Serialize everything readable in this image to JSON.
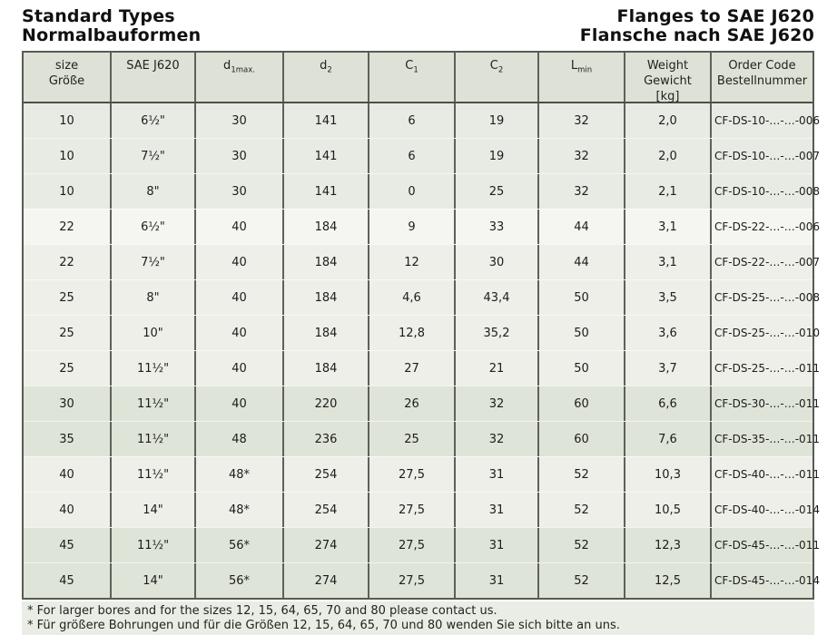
{
  "header": {
    "title_en": "Standard Types",
    "title_de": "Normalbauformen",
    "right_title_en": "Flanges to SAE J620",
    "right_title_de": "Flansche nach SAE J620"
  },
  "table": {
    "columns": [
      {
        "id": "size",
        "lines": [
          "size",
          "Größe"
        ]
      },
      {
        "id": "sae-j620",
        "lines": [
          "SAE J620"
        ]
      },
      {
        "id": "d1max",
        "base": "d",
        "sub": "1max."
      },
      {
        "id": "d2",
        "base": "d",
        "sub": "2"
      },
      {
        "id": "c1",
        "base": "C",
        "sub": "1"
      },
      {
        "id": "c2",
        "base": "C",
        "sub": "2"
      },
      {
        "id": "lmin",
        "base": "L",
        "sub": "min"
      },
      {
        "id": "weight",
        "lines": [
          "Weight",
          "Gewicht",
          "[kg]"
        ]
      },
      {
        "id": "order-code",
        "lines": [
          "Order Code",
          "Bestellnummer"
        ]
      }
    ],
    "rows": [
      {
        "band": "m",
        "cells": [
          "10",
          "6½\"",
          "30",
          "141",
          "6",
          "19",
          "32",
          "2,0",
          "CF-DS-10-…-…-006"
        ]
      },
      {
        "band": "m",
        "cells": [
          "10",
          "7½\"",
          "30",
          "141",
          "6",
          "19",
          "32",
          "2,0",
          "CF-DS-10-…-…-007"
        ]
      },
      {
        "band": "m",
        "cells": [
          "10",
          "8\"",
          "30",
          "141",
          "0",
          "25",
          "32",
          "2,1",
          "CF-DS-10-…-…-008"
        ]
      },
      {
        "band": "l",
        "cells": [
          "22",
          "6½\"",
          "40",
          "184",
          "9",
          "33",
          "44",
          "3,1",
          "CF-DS-22-…-…-006"
        ]
      },
      {
        "band": "ml",
        "cells": [
          "22",
          "7½\"",
          "40",
          "184",
          "12",
          "30",
          "44",
          "3,1",
          "CF-DS-22-…-…-007"
        ]
      },
      {
        "band": "ml",
        "cells": [
          "25",
          "8\"",
          "40",
          "184",
          "4,6",
          "43,4",
          "50",
          "3,5",
          "CF-DS-25-…-…-008"
        ]
      },
      {
        "band": "ml",
        "cells": [
          "25",
          "10\"",
          "40",
          "184",
          "12,8",
          "35,2",
          "50",
          "3,6",
          "CF-DS-25-…-…-010"
        ]
      },
      {
        "band": "ml",
        "cells": [
          "25",
          "11½\"",
          "40",
          "184",
          "27",
          "21",
          "50",
          "3,7",
          "CF-DS-25-…-…-011"
        ]
      },
      {
        "band": "d",
        "cells": [
          "30",
          "11½\"",
          "40",
          "220",
          "26",
          "32",
          "60",
          "6,6",
          "CF-DS-30-…-…-011"
        ]
      },
      {
        "band": "d",
        "cells": [
          "35",
          "11½\"",
          "48",
          "236",
          "25",
          "32",
          "60",
          "7,6",
          "CF-DS-35-…-…-011"
        ]
      },
      {
        "band": "ml",
        "cells": [
          "40",
          "11½\"",
          "48*",
          "254",
          "27,5",
          "31",
          "52",
          "10,3",
          "CF-DS-40-…-…-011"
        ]
      },
      {
        "band": "ml",
        "cells": [
          "40",
          "14\"",
          "48*",
          "254",
          "27,5",
          "31",
          "52",
          "10,5",
          "CF-DS-40-…-…-014"
        ]
      },
      {
        "band": "d",
        "cells": [
          "45",
          "11½\"",
          "56*",
          "274",
          "27,5",
          "31",
          "52",
          "12,3",
          "CF-DS-45-…-…-011"
        ]
      },
      {
        "band": "d",
        "cells": [
          "45",
          "14\"",
          "56*",
          "274",
          "27,5",
          "31",
          "52",
          "12,5",
          "CF-DS-45-…-…-014"
        ]
      }
    ]
  },
  "footnotes": [
    "* For larger bores and for the sizes 12, 15, 64, 65, 70 and 80 please contact us.",
    "* Für größere Bohrungen und für die Größen 12, 15, 64, 65, 70 und 80 wenden Sie sich bitte an uns."
  ],
  "colors": {
    "header_bg": "#dde1d6",
    "band_medium": "#e8ebe3",
    "band_light": "#f5f6f2",
    "band_medium_light": "#edefe8",
    "band_dark": "#dfe4d8",
    "border_dark": "#585b53",
    "footnote_bg": "#eaede6"
  }
}
